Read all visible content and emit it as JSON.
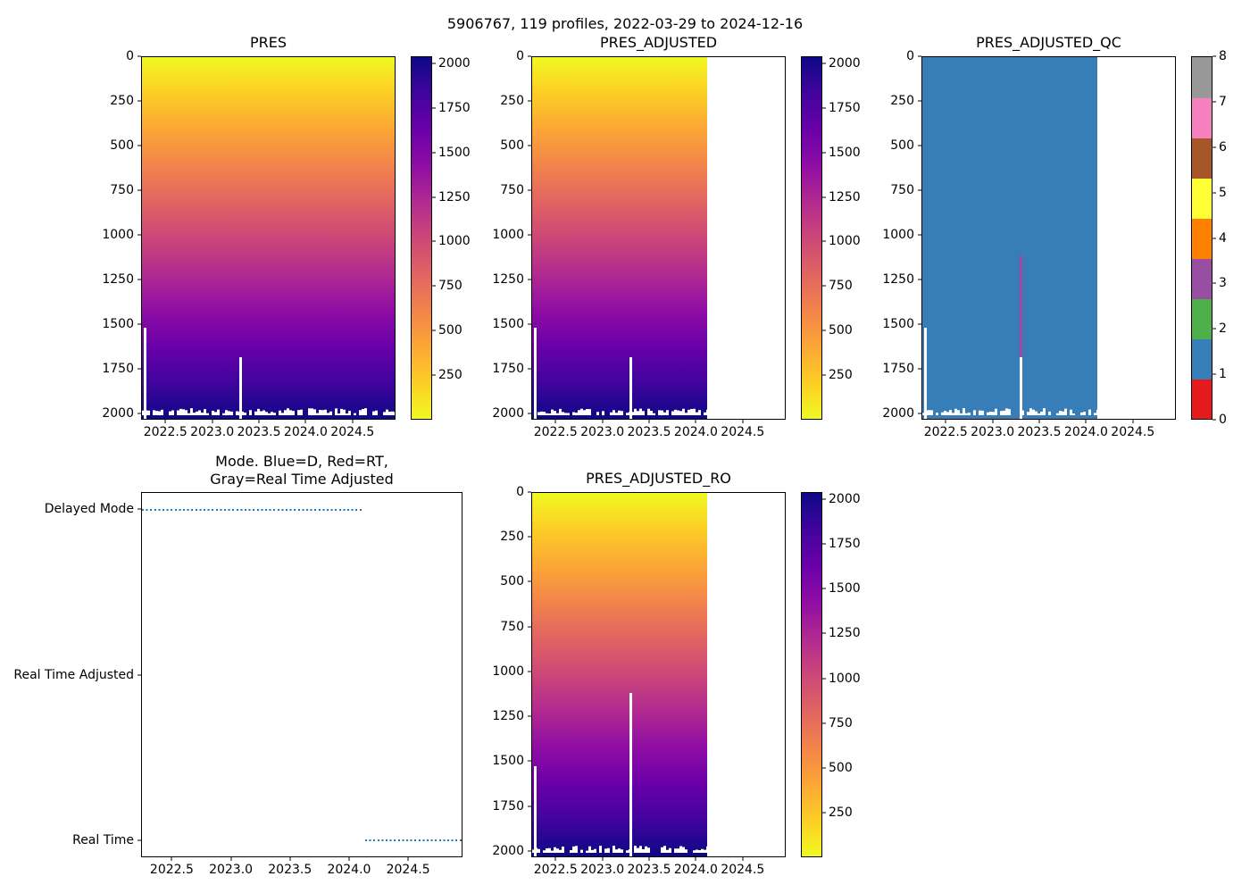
{
  "figure": {
    "suptitle": "5906767, 119 profiles, 2022-03-29 to 2024-12-16",
    "background": "#ffffff"
  },
  "palette": {
    "plasma_reversed_stops": [
      "#f0f921",
      "#fcce25",
      "#fca636",
      "#f2844b",
      "#e16462",
      "#cc4778",
      "#b12a90",
      "#8f0da4",
      "#6a00a8",
      "#41049d",
      "#0d0887"
    ],
    "qc_segment_colors_bottom_to_top": [
      "#e41a1c",
      "#377eb8",
      "#4daf4a",
      "#984ea3",
      "#ff7f00",
      "#ffff33",
      "#a65628",
      "#f781bf",
      "#999999"
    ],
    "qc_fill_blue": "#377eb8",
    "qc_anomaly_purple": "#a4489f",
    "mode_dot_blue": "#1f77b4",
    "missing_white": "#ffffff",
    "axis_color": "#000000"
  },
  "chart_data": [
    {
      "id": "pres",
      "type": "heatmap",
      "title": "PRES",
      "x_range": [
        2022.24,
        2024.96
      ],
      "xticks": {
        "values": [
          2022.5,
          2023.0,
          2023.5,
          2024.0,
          2024.5
        ],
        "labels": [
          "2022.5",
          "2023.0",
          "2023.5",
          "2024.0",
          "2024.5"
        ]
      },
      "y_range": [
        0,
        2035
      ],
      "y_inverted": true,
      "yticks": {
        "values": [
          0,
          250,
          500,
          750,
          1000,
          1250,
          1500,
          1750,
          2000
        ],
        "labels": [
          "0",
          "250",
          "500",
          "750",
          "1000",
          "1250",
          "1500",
          "1750",
          "2000"
        ]
      },
      "value_mapping": "color encodes pressure (dbar); 0 = yellow at surface, ~2035 = dark navy at depth",
      "data_x_extent": [
        2022.24,
        2024.96
      ],
      "profile_bottom_depth_range": [
        1985,
        2030
      ],
      "missing_segments": [
        {
          "x": 2022.27,
          "depth_from": 1520,
          "depth_to": 2035,
          "note": "first profile ends near 1500 dbar"
        },
        {
          "x": 2023.3,
          "depth_from": 1690,
          "depth_to": 2035,
          "note": "profile gap below 1690 dbar"
        }
      ],
      "colorbar": {
        "style": "plasma_reversed",
        "range": [
          0,
          2040
        ],
        "ticks": {
          "values": [
            250,
            500,
            750,
            1000,
            1250,
            1500,
            1750,
            2000
          ],
          "labels": [
            "250",
            "500",
            "750",
            "1000",
            "1250",
            "1500",
            "1750",
            "2000"
          ]
        }
      }
    },
    {
      "id": "pres_adjusted",
      "type": "heatmap",
      "title": "PRES_ADJUSTED",
      "x_range": [
        2022.24,
        2024.96
      ],
      "xticks": {
        "values": [
          2022.5,
          2023.0,
          2023.5,
          2024.0,
          2024.5
        ],
        "labels": [
          "2022.5",
          "2023.0",
          "2023.5",
          "2024.0",
          "2024.5"
        ]
      },
      "y_range": [
        0,
        2035
      ],
      "y_inverted": true,
      "yticks": {
        "values": [
          0,
          250,
          500,
          750,
          1000,
          1250,
          1500,
          1750,
          2000
        ],
        "labels": [
          "0",
          "250",
          "500",
          "750",
          "1000",
          "1250",
          "1500",
          "1750",
          "2000"
        ]
      },
      "value_mapping": "color encodes adjusted pressure (dbar)",
      "data_x_extent": [
        2022.24,
        2024.12
      ],
      "profile_bottom_depth_range": [
        1985,
        2030
      ],
      "missing_segments": [
        {
          "x": 2022.27,
          "depth_from": 1520,
          "depth_to": 2035,
          "note": "first profile ends near 1500 dbar"
        },
        {
          "x": 2023.3,
          "depth_from": 1690,
          "depth_to": 2035,
          "note": "profile gap below 1690 dbar"
        }
      ],
      "colorbar": {
        "style": "plasma_reversed",
        "range": [
          0,
          2040
        ],
        "ticks": {
          "values": [
            250,
            500,
            750,
            1000,
            1250,
            1500,
            1750,
            2000
          ],
          "labels": [
            "250",
            "500",
            "750",
            "1000",
            "1250",
            "1500",
            "1750",
            "2000"
          ]
        }
      }
    },
    {
      "id": "pres_adjusted_qc",
      "type": "heatmap",
      "title": "PRES_ADJUSTED_QC",
      "x_range": [
        2022.24,
        2024.96
      ],
      "xticks": {
        "values": [
          2022.5,
          2023.0,
          2023.5,
          2024.0,
          2024.5
        ],
        "labels": [
          "2022.5",
          "2023.0",
          "2023.5",
          "2024.0",
          "2024.5"
        ]
      },
      "y_range": [
        0,
        2035
      ],
      "y_inverted": true,
      "yticks": {
        "values": [
          0,
          250,
          500,
          750,
          1000,
          1250,
          1500,
          1750,
          2000
        ],
        "labels": [
          "0",
          "250",
          "500",
          "750",
          "1000",
          "1250",
          "1500",
          "1750",
          "2000"
        ]
      },
      "value_mapping": "categorical QC flags; nearly all values are QC=1 (blue)",
      "fill_qc_value": 1,
      "data_x_extent": [
        2022.24,
        2024.12
      ],
      "profile_bottom_depth_range": [
        1985,
        2030
      ],
      "anomaly_profile": {
        "x": 2023.3,
        "depth_from": 1120,
        "depth_to": 1690,
        "qc_value": 3,
        "note": "single profile flagged purple between ~1120 and ~1690 dbar"
      },
      "missing_segments": [
        {
          "x": 2022.27,
          "depth_from": 1520,
          "depth_to": 2035,
          "note": "first profile ends near 1500 dbar"
        },
        {
          "x": 2023.3,
          "depth_from": 1690,
          "depth_to": 2035,
          "note": "profile gap below 1690 dbar"
        }
      ],
      "colorbar": {
        "style": "discrete",
        "range": [
          0,
          8
        ],
        "ticks": {
          "values": [
            0,
            1,
            2,
            3,
            4,
            5,
            6,
            7,
            8
          ],
          "labels": [
            "0",
            "1",
            "2",
            "3",
            "4",
            "5",
            "6",
            "7",
            "8"
          ]
        }
      }
    },
    {
      "id": "mode",
      "type": "scatter",
      "title_line1": "Mode. Blue=D, Red=RT,",
      "title_line2": "Gray=Real Time Adjusted",
      "x_range": [
        2022.24,
        2024.96
      ],
      "xticks": {
        "values": [
          2022.5,
          2023.0,
          2023.5,
          2024.0,
          2024.5
        ],
        "labels": [
          "2022.5",
          "2023.0",
          "2023.5",
          "2024.0",
          "2024.5"
        ]
      },
      "y_range": [
        -0.1,
        2.1
      ],
      "y_categories": [
        {
          "label": "Delayed Mode",
          "value": 2
        },
        {
          "label": "Real Time Adjusted",
          "value": 1
        },
        {
          "label": "Real Time",
          "value": 0
        }
      ],
      "series": [
        {
          "name": "Delayed Mode",
          "y_value": 2,
          "x_start": 2022.24,
          "x_end": 2024.12
        },
        {
          "name": "Real Time",
          "y_value": 0,
          "x_start": 2024.14,
          "x_end": 2024.96
        }
      ]
    },
    {
      "id": "pres_adjusted_ro",
      "type": "heatmap",
      "title": "PRES_ADJUSTED_RO",
      "x_range": [
        2022.24,
        2024.96
      ],
      "xticks": {
        "values": [
          2022.5,
          2023.0,
          2023.5,
          2024.0,
          2024.5
        ],
        "labels": [
          "2022.5",
          "2023.0",
          "2023.5",
          "2024.0",
          "2024.5"
        ]
      },
      "y_range": [
        0,
        2035
      ],
      "y_inverted": true,
      "yticks": {
        "values": [
          0,
          250,
          500,
          750,
          1000,
          1250,
          1500,
          1750,
          2000
        ],
        "labels": [
          "0",
          "250",
          "500",
          "750",
          "1000",
          "1250",
          "1500",
          "1750",
          "2000"
        ]
      },
      "value_mapping": "color encodes real-time-ops adjusted pressure (dbar)",
      "data_x_extent": [
        2022.24,
        2024.12
      ],
      "profile_bottom_depth_range": [
        1985,
        2030
      ],
      "missing_segments": [
        {
          "x": 2022.27,
          "depth_from": 1530,
          "depth_to": 2035,
          "note": "first profile ends near 1500 dbar"
        },
        {
          "x": 2023.3,
          "depth_from": 1120,
          "depth_to": 2035,
          "note": "profile gap below 1120 dbar"
        }
      ],
      "colorbar": {
        "style": "plasma_reversed",
        "range": [
          0,
          2040
        ],
        "ticks": {
          "values": [
            250,
            500,
            750,
            1000,
            1250,
            1500,
            1750,
            2000
          ],
          "labels": [
            "250",
            "500",
            "750",
            "1000",
            "1250",
            "1500",
            "1750",
            "2000"
          ]
        }
      }
    }
  ]
}
